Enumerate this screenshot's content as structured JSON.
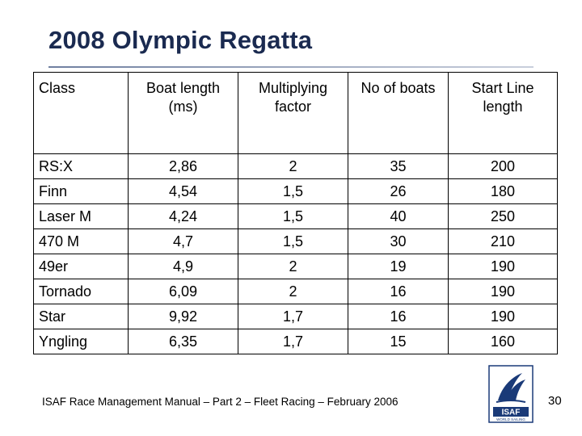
{
  "slide": {
    "title": "2008 Olympic Regatta",
    "footer": "ISAF Race Management Manual – Part 2 – Fleet Racing – February 2006",
    "page_number": "30",
    "logo": {
      "icon": "isaf-logo",
      "text": "ISAF",
      "subtext": "WORLD SAILING",
      "colors": {
        "primary": "#1a3a78",
        "background": "#ffffff"
      }
    }
  },
  "table": {
    "headers": [
      [
        "Class"
      ],
      [
        "Boat length",
        "(ms)"
      ],
      [
        "Multiplying",
        "factor"
      ],
      [
        "No of boats"
      ],
      [
        "Start Line",
        "length"
      ]
    ],
    "rows": [
      [
        "RS:X",
        "2,86",
        "2",
        "35",
        "200"
      ],
      [
        "Finn",
        "4,54",
        "1,5",
        "26",
        "180"
      ],
      [
        "Laser M",
        "4,24",
        "1,5",
        "40",
        "250"
      ],
      [
        "470 M",
        "4,7",
        "1,5",
        "30",
        "210"
      ],
      [
        "49er",
        "4,9",
        "2",
        "19",
        "190"
      ],
      [
        "Tornado",
        "6,09",
        "2",
        "16",
        "190"
      ],
      [
        "Star",
        "9,92",
        "1,7",
        "16",
        "190"
      ],
      [
        "Yngling",
        "6,35",
        "1,7",
        "15",
        "160"
      ]
    ]
  }
}
